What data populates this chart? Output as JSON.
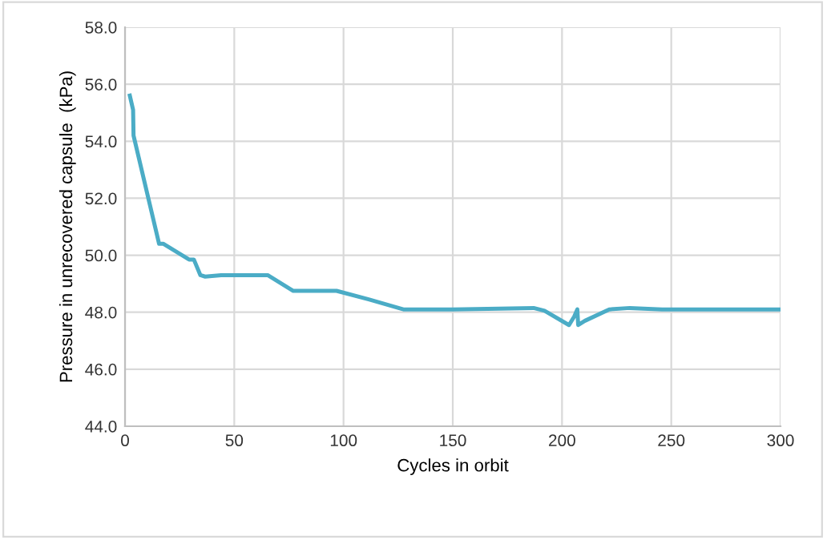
{
  "chart_data": {
    "type": "line",
    "xlabel": "Cycles in orbit",
    "ylabel": "Pressure in unrecovered capsule  (kPa)",
    "xlim": [
      0,
      300
    ],
    "ylim": [
      44,
      58
    ],
    "xticks": [
      0,
      50,
      100,
      150,
      200,
      250,
      300
    ],
    "yticks": [
      {
        "value": 44,
        "label": "44.0"
      },
      {
        "value": 46,
        "label": "46.0"
      },
      {
        "value": 48,
        "label": "48.0"
      },
      {
        "value": 50,
        "label": "50.0"
      },
      {
        "value": 52,
        "label": "52.0"
      },
      {
        "value": 54,
        "label": "54.0"
      },
      {
        "value": 56,
        "label": "56.0"
      },
      {
        "value": 58,
        "label": "58.0"
      }
    ],
    "grid": true,
    "marker": "none",
    "line_style": "solid",
    "series": [
      {
        "color": "#4bacc6",
        "x": [
          2.2,
          3.7,
          3.9,
          15.6,
          17.6,
          29.3,
          31.5,
          34.5,
          36.7,
          44,
          65.3,
          77,
          96.8,
          111.5,
          127.4,
          150,
          187,
          192,
          203.2,
          205.6,
          207,
          207.4,
          210.5,
          221.6,
          231,
          245.8,
          300
        ],
        "values": [
          55.6,
          55.1,
          54.2,
          50.4,
          50.4,
          49.85,
          49.85,
          49.3,
          49.25,
          49.3,
          49.3,
          48.75,
          48.75,
          48.45,
          48.1,
          48.1,
          48.15,
          48.05,
          47.55,
          47.85,
          48.1,
          47.55,
          47.7,
          48.1,
          48.15,
          48.1,
          48.1
        ]
      }
    ]
  }
}
